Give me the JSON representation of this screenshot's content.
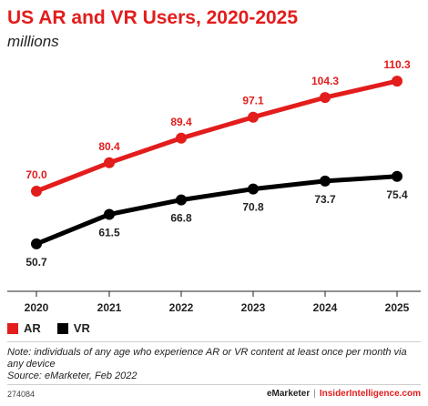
{
  "header": {
    "title": "US AR and VR Users, 2020-2025",
    "subtitle": "millions"
  },
  "legend": [
    {
      "label": "AR",
      "color": "#e31c1c"
    },
    {
      "label": "VR",
      "color": "#000000"
    }
  ],
  "footer": {
    "note": "Note: individuals of any age who experience AR or VR content at least once per month via any device",
    "source": "Source: eMarketer, Feb 2022",
    "id": "274084",
    "brand1": "eMarketer",
    "separator": "|",
    "brand2": "InsiderIntelligence.com"
  },
  "chart_data": {
    "type": "line",
    "x": [
      "2020",
      "2021",
      "2022",
      "2023",
      "2024",
      "2025"
    ],
    "series": [
      {
        "name": "AR",
        "color": "#e31c1c",
        "values": [
          70.0,
          80.4,
          89.4,
          97.1,
          104.3,
          110.3
        ],
        "labels": [
          "70.0",
          "80.4",
          "89.4",
          "97.1",
          "104.3",
          "110.3"
        ]
      },
      {
        "name": "VR",
        "color": "#000000",
        "values": [
          50.7,
          61.5,
          66.8,
          70.8,
          73.7,
          75.4
        ],
        "labels": [
          "50.7",
          "61.5",
          "66.8",
          "70.8",
          "73.7",
          "75.4"
        ]
      }
    ],
    "ylim": [
      40,
      120
    ],
    "grid": false,
    "legend_position": "bottom-left"
  }
}
